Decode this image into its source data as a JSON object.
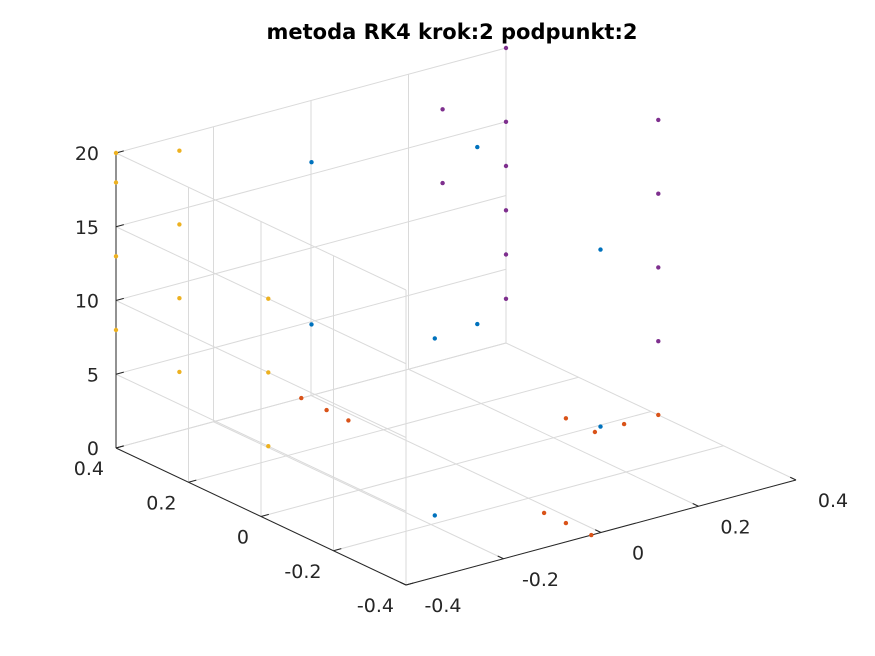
{
  "chart_data": {
    "type": "scatter",
    "title": "metoda RK4 krok:2 podpunkt:2",
    "xlabel": "",
    "ylabel": "",
    "zlabel": "",
    "projection": "3d",
    "grid": true,
    "xlim": [
      -0.4,
      0.4
    ],
    "ylim": [
      -0.4,
      0.4
    ],
    "zlim": [
      0,
      20
    ],
    "z_ticks": [
      "0",
      "5",
      "10",
      "15",
      "20"
    ],
    "y_ticks": [
      "0.4",
      "0.2",
      "0",
      "-0.2",
      "-0.4"
    ],
    "x_ticks": [
      "-0.4",
      "-0.2",
      "0",
      "0.2",
      "0.4"
    ],
    "series": [
      {
        "color": "#0072bd",
        "points": [
          {
            "x": -0.17,
            "y": -0.17,
            "z": 0
          },
          {
            "x": 0.17,
            "y": -0.17,
            "z": 3
          },
          {
            "x": 0.17,
            "y": 0.17,
            "z": 6
          },
          {
            "x": -0.17,
            "y": 0.17,
            "z": 9
          },
          {
            "x": -0.17,
            "y": -0.17,
            "z": 12
          },
          {
            "x": 0.17,
            "y": -0.17,
            "z": 15
          },
          {
            "x": 0.17,
            "y": 0.17,
            "z": 18
          },
          {
            "x": -0.17,
            "y": 0.17,
            "z": 20
          }
        ]
      },
      {
        "color": "#d95319",
        "points": [
          {
            "x": -0.02,
            "y": -0.4,
            "z": 0
          },
          {
            "x": -0.02,
            "y": -0.33,
            "z": 0
          },
          {
            "x": -0.02,
            "y": -0.27,
            "z": 0
          },
          {
            "x": 0.4,
            "y": -0.02,
            "z": 0
          },
          {
            "x": 0.33,
            "y": -0.02,
            "z": 0
          },
          {
            "x": 0.27,
            "y": -0.02,
            "z": 0
          },
          {
            "x": 0.27,
            "y": 0.06,
            "z": 0
          },
          {
            "x": -0.02,
            "y": 0.4,
            "z": 0
          },
          {
            "x": -0.02,
            "y": 0.33,
            "z": 0
          },
          {
            "x": -0.02,
            "y": 0.27,
            "z": 0
          }
        ]
      },
      {
        "color": "#edb120",
        "points": [
          {
            "x": -0.4,
            "y": -0.02,
            "z": 5
          },
          {
            "x": -0.4,
            "y": -0.02,
            "z": 10
          },
          {
            "x": -0.4,
            "y": -0.02,
            "z": 15
          },
          {
            "x": -0.27,
            "y": 0.4,
            "z": 4
          },
          {
            "x": -0.27,
            "y": 0.4,
            "z": 9
          },
          {
            "x": -0.27,
            "y": 0.4,
            "z": 14
          },
          {
            "x": -0.27,
            "y": 0.4,
            "z": 19
          },
          {
            "x": -0.4,
            "y": 0.4,
            "z": 8
          },
          {
            "x": -0.4,
            "y": 0.4,
            "z": 13
          },
          {
            "x": -0.4,
            "y": 0.4,
            "z": 18
          },
          {
            "x": -0.4,
            "y": 0.4,
            "z": 20
          }
        ]
      },
      {
        "color": "#7e2f8e",
        "points": [
          {
            "x": 0.4,
            "y": -0.02,
            "z": 5
          },
          {
            "x": 0.4,
            "y": -0.02,
            "z": 10
          },
          {
            "x": 0.4,
            "y": -0.02,
            "z": 15
          },
          {
            "x": 0.4,
            "y": -0.02,
            "z": 20
          },
          {
            "x": 0.4,
            "y": 0.4,
            "z": 3
          },
          {
            "x": 0.4,
            "y": 0.4,
            "z": 6
          },
          {
            "x": 0.4,
            "y": 0.4,
            "z": 9
          },
          {
            "x": 0.4,
            "y": 0.4,
            "z": 12
          },
          {
            "x": 0.4,
            "y": 0.4,
            "z": 15
          },
          {
            "x": 0.4,
            "y": 0.4,
            "z": 20
          },
          {
            "x": 0.27,
            "y": 0.4,
            "z": 12
          },
          {
            "x": 0.27,
            "y": 0.4,
            "z": 17
          }
        ]
      }
    ]
  }
}
